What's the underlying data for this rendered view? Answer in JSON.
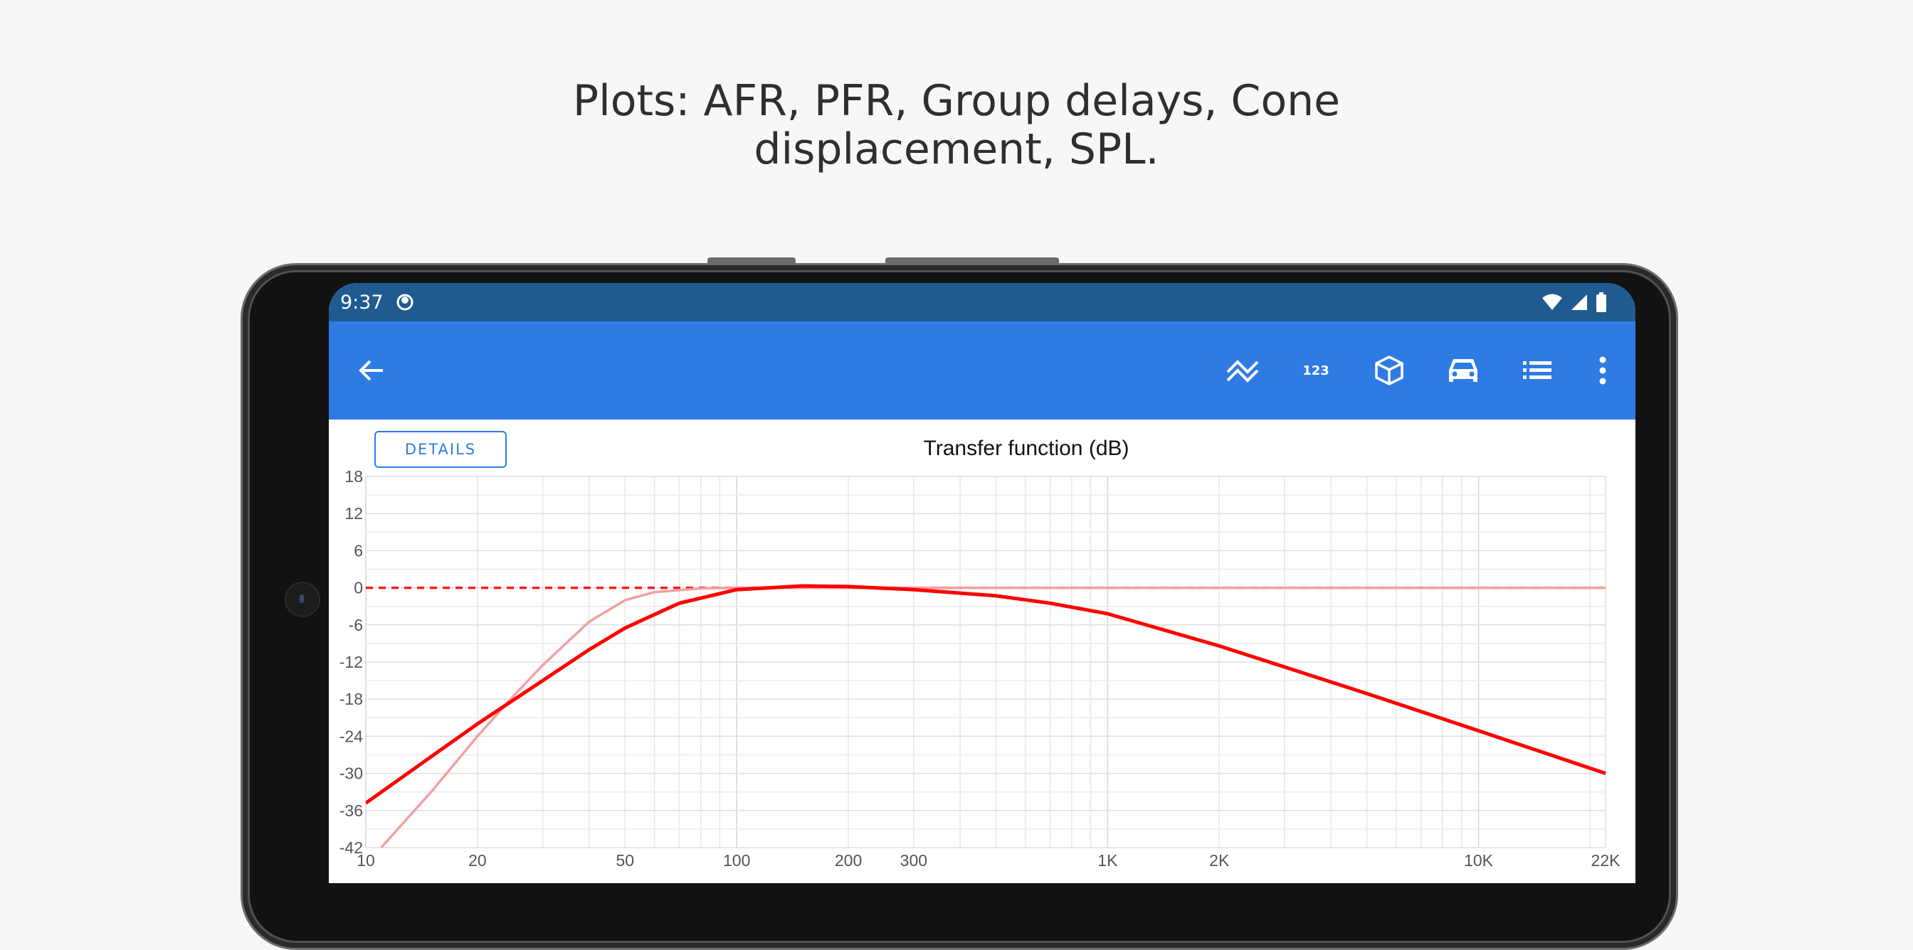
{
  "headline": {
    "line1": "Plots: AFR, PFR, Group delays, Cone",
    "line2": "displacement, SPL."
  },
  "status_bar": {
    "time": "9:37",
    "icons": [
      "app-notification-icon",
      "wifi-icon",
      "cellular-signal-icon",
      "battery-icon"
    ]
  },
  "toolbar": {
    "icons": [
      "back-arrow-icon",
      "filter-response-icon",
      "numeric-123-icon",
      "box-3d-icon",
      "car-icon",
      "list-icon",
      "more-vert-icon"
    ],
    "bg": "#2e7be3",
    "status_bg": "#1f5b90"
  },
  "details_button": {
    "label": "DETAILS"
  },
  "chart_data": {
    "type": "line",
    "title": "Transfer function (dB)",
    "x_scale": "log",
    "xlim": [
      10,
      22000
    ],
    "ylim": [
      -42,
      18
    ],
    "y_ticks": [
      "18",
      "12",
      "6",
      "0",
      "-6",
      "-12",
      "-18",
      "-24",
      "-30",
      "-36",
      "-42"
    ],
    "x_ticks": [
      {
        "value": 10,
        "label": "10"
      },
      {
        "value": 20,
        "label": "20"
      },
      {
        "value": 50,
        "label": "50"
      },
      {
        "value": 100,
        "label": "100"
      },
      {
        "value": 200,
        "label": "200"
      },
      {
        "value": 300,
        "label": "300"
      },
      {
        "value": 1000,
        "label": "1K"
      },
      {
        "value": 2000,
        "label": "2K"
      },
      {
        "value": 10000,
        "label": "10K"
      },
      {
        "value": 22000,
        "label": "22K"
      }
    ],
    "grid": true,
    "series": [
      {
        "color": "#ff1a1a",
        "style": "dashed",
        "x": [
          10,
          22000
        ],
        "y": [
          0,
          0
        ]
      },
      {
        "color": "#f4a0a0",
        "style": "solid",
        "x": [
          11,
          15,
          20,
          25,
          30,
          40,
          50,
          60,
          80,
          100,
          22000
        ],
        "y": [
          -42,
          -33,
          -24,
          -17.5,
          -12.5,
          -5.5,
          -2,
          -0.7,
          -0.1,
          0,
          0
        ]
      },
      {
        "color": "#ff0000",
        "style": "solid",
        "x": [
          10,
          15,
          20,
          30,
          40,
          50,
          70,
          100,
          150,
          200,
          300,
          500,
          700,
          1000,
          2000,
          3000,
          5000,
          10000,
          22000
        ],
        "y": [
          -34.8,
          -27.3,
          -22,
          -15,
          -10,
          -6.5,
          -2.5,
          -0.3,
          0.3,
          0.2,
          -0.3,
          -1.3,
          -2.5,
          -4.2,
          -9.4,
          -12.8,
          -17.1,
          -23.1,
          -30
        ]
      }
    ]
  }
}
